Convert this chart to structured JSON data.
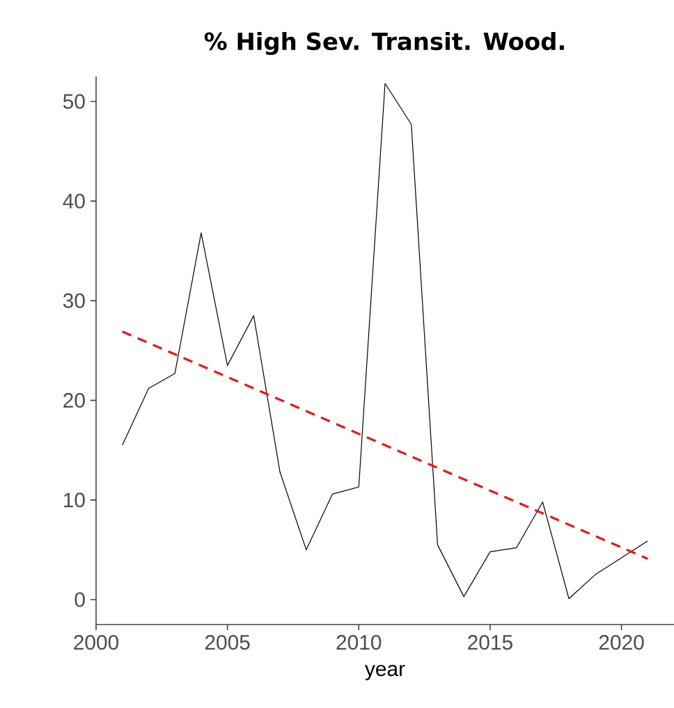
{
  "chart_data": {
    "type": "line",
    "title": "% High Sev. Transit. Wood.",
    "xlabel": "year",
    "x": [
      2001,
      2002,
      2003,
      2004,
      2005,
      2006,
      2007,
      2008,
      2009,
      2010,
      2011,
      2012,
      2013,
      2014,
      2015,
      2016,
      2017,
      2018,
      2019,
      2020,
      2021
    ],
    "series": [
      {
        "color": "#000000",
        "line_style": "solid",
        "values": [
          15.5,
          21.2,
          22.7,
          36.8,
          23.5,
          28.5,
          12.8,
          5.0,
          10.6,
          11.3,
          51.8,
          47.7,
          5.5,
          0.3,
          4.8,
          5.2,
          9.8,
          0.1,
          2.5,
          4.2,
          5.9
        ]
      },
      {
        "color": "#e31a1c",
        "line_style": "dashed",
        "x": [
          2001,
          2021
        ],
        "values": [
          26.9,
          4.1
        ]
      }
    ],
    "xlim": [
      2000,
      2022
    ],
    "ylim": [
      -2.5,
      52.5
    ],
    "xticks": [
      2000,
      2005,
      2010,
      2015,
      2020
    ],
    "yticks": [
      0,
      10,
      20,
      30,
      40,
      50
    ],
    "grid": false,
    "marker": "none"
  }
}
